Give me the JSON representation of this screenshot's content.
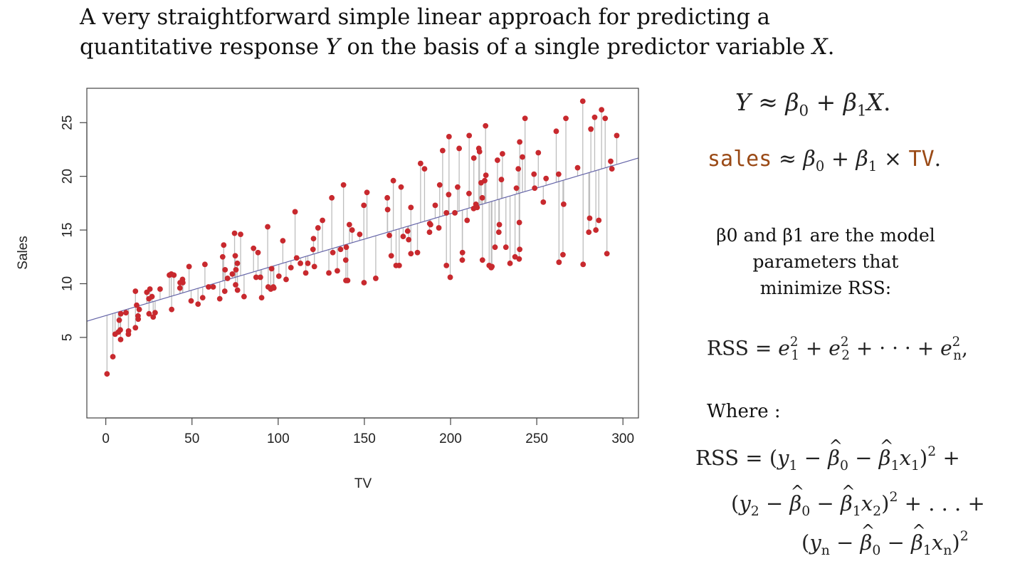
{
  "title": {
    "line1": "A very straightforward simple linear approach for predicting a",
    "line2_pre": "quantitative response ",
    "line2_y": "Y",
    "line2_mid": " on the basis of a single predictor variable ",
    "line2_x": "X",
    "line2_end": "."
  },
  "equations": {
    "eq1": {
      "lhs": "Y",
      "approx": "≈",
      "beta": "β",
      "sub0": "0",
      "plus": "+",
      "sub1": "1",
      "x": "X",
      "end": "."
    },
    "eq2": {
      "sales": "sales",
      "approx": "≈",
      "beta": "β",
      "sub0": "0",
      "plus": "+",
      "sub1": "1",
      "times": "×",
      "tv": "TV",
      "end": "."
    },
    "rss": {
      "lhs": "RSS",
      "eq": "=",
      "e": "e",
      "sub1": "1",
      "sub2": "2",
      "subn": "n",
      "sq": "2",
      "plus": "+",
      "dots": "· · ·",
      "end": ","
    },
    "rss_full": {
      "lhs": "RSS",
      "eq": "=",
      "y": "y",
      "x": "x",
      "beta": "β",
      "minus": "−",
      "plus": "+",
      "ellipsis": ". . .",
      "sub0": "0",
      "sub1": "1",
      "sub2": "2",
      "subn": "n",
      "sq": "2",
      "open": "(",
      "close": ")"
    }
  },
  "description": {
    "line1": "β0 and β1 are the model",
    "line2": "parameters that",
    "line3": "minimize RSS:"
  },
  "where_label": "Where :",
  "chart_data": {
    "type": "scatter",
    "xlabel": "TV",
    "ylabel": "Sales",
    "xlim": [
      -11,
      309
    ],
    "ylim": [
      -2.5,
      28.2
    ],
    "x_ticks": [
      0,
      50,
      100,
      150,
      200,
      250,
      300
    ],
    "y_ticks": [
      5,
      10,
      15,
      20,
      25
    ],
    "grid": false,
    "regression_line": {
      "intercept": 7.03,
      "slope": 0.0475
    },
    "colors": {
      "points": "#c8292e",
      "fit_line": "#6565a8",
      "residuals": "#bdbdbd"
    },
    "points": [
      [
        0.7,
        1.6
      ],
      [
        4.1,
        3.2
      ],
      [
        5.4,
        5.3
      ],
      [
        7.3,
        5.5
      ],
      [
        7.8,
        6.6
      ],
      [
        8.4,
        5.7
      ],
      [
        8.6,
        4.8
      ],
      [
        8.7,
        7.2
      ],
      [
        11.7,
        7.3
      ],
      [
        13.1,
        5.3
      ],
      [
        13.2,
        5.6
      ],
      [
        17.2,
        5.9
      ],
      [
        17.2,
        9.3
      ],
      [
        17.9,
        8.0
      ],
      [
        18.7,
        7.0
      ],
      [
        18.8,
        6.7
      ],
      [
        19.4,
        7.6
      ],
      [
        23.8,
        9.2
      ],
      [
        25.0,
        8.6
      ],
      [
        25.1,
        7.2
      ],
      [
        25.6,
        9.5
      ],
      [
        26.8,
        8.8
      ],
      [
        27.5,
        6.9
      ],
      [
        28.6,
        7.3
      ],
      [
        31.5,
        9.5
      ],
      [
        36.9,
        10.8
      ],
      [
        38.0,
        10.9
      ],
      [
        38.2,
        7.6
      ],
      [
        39.5,
        10.8
      ],
      [
        43.0,
        9.6
      ],
      [
        43.1,
        10.1
      ],
      [
        44.5,
        10.4
      ],
      [
        44.7,
        10.1
      ],
      [
        48.3,
        11.6
      ],
      [
        49.5,
        8.4
      ],
      [
        53.5,
        8.1
      ],
      [
        56.2,
        8.7
      ],
      [
        57.5,
        11.8
      ],
      [
        59.6,
        9.7
      ],
      [
        62.3,
        9.7
      ],
      [
        66.1,
        8.6
      ],
      [
        67.8,
        12.5
      ],
      [
        68.4,
        13.6
      ],
      [
        69.0,
        9.3
      ],
      [
        69.2,
        11.3
      ],
      [
        70.6,
        10.5
      ],
      [
        73.4,
        10.9
      ],
      [
        74.7,
        14.7
      ],
      [
        75.1,
        12.6
      ],
      [
        75.3,
        9.9
      ],
      [
        75.5,
        11.3
      ],
      [
        76.3,
        11.9
      ],
      [
        76.4,
        9.4
      ],
      [
        78.2,
        14.6
      ],
      [
        80.2,
        8.8
      ],
      [
        85.7,
        13.3
      ],
      [
        87.2,
        10.6
      ],
      [
        88.3,
        12.9
      ],
      [
        89.7,
        10.6
      ],
      [
        90.4,
        8.7
      ],
      [
        93.9,
        15.3
      ],
      [
        94.2,
        9.7
      ],
      [
        95.7,
        9.5
      ],
      [
        96.2,
        11.4
      ],
      [
        97.2,
        9.7
      ],
      [
        97.5,
        9.6
      ],
      [
        100.4,
        10.7
      ],
      [
        102.7,
        14.0
      ],
      [
        104.6,
        10.4
      ],
      [
        107.4,
        11.5
      ],
      [
        109.8,
        16.7
      ],
      [
        110.7,
        12.4
      ],
      [
        112.9,
        11.9
      ],
      [
        116.0,
        11.0
      ],
      [
        117.2,
        11.9
      ],
      [
        120.2,
        13.2
      ],
      [
        120.5,
        14.2
      ],
      [
        121.0,
        11.6
      ],
      [
        123.1,
        15.2
      ],
      [
        125.7,
        15.9
      ],
      [
        129.4,
        11.0
      ],
      [
        131.1,
        18.0
      ],
      [
        131.7,
        12.9
      ],
      [
        134.3,
        11.2
      ],
      [
        136.2,
        13.2
      ],
      [
        137.9,
        19.2
      ],
      [
        139.2,
        12.2
      ],
      [
        139.3,
        10.3
      ],
      [
        139.5,
        13.4
      ],
      [
        140.3,
        10.3
      ],
      [
        141.3,
        15.5
      ],
      [
        142.9,
        15.0
      ],
      [
        147.3,
        14.6
      ],
      [
        149.7,
        17.3
      ],
      [
        149.8,
        10.1
      ],
      [
        151.5,
        18.5
      ],
      [
        156.6,
        10.5
      ],
      [
        163.3,
        18.0
      ],
      [
        163.5,
        16.9
      ],
      [
        164.5,
        14.5
      ],
      [
        165.6,
        12.6
      ],
      [
        166.8,
        19.6
      ],
      [
        168.4,
        11.7
      ],
      [
        170.2,
        11.7
      ],
      [
        171.3,
        19.0
      ],
      [
        172.5,
        14.4
      ],
      [
        175.1,
        14.9
      ],
      [
        175.7,
        14.1
      ],
      [
        177.0,
        12.8
      ],
      [
        177.0,
        17.1
      ],
      [
        180.8,
        12.9
      ],
      [
        182.6,
        21.2
      ],
      [
        184.9,
        20.7
      ],
      [
        187.8,
        14.8
      ],
      [
        187.9,
        15.6
      ],
      [
        188.4,
        15.5
      ],
      [
        191.1,
        17.3
      ],
      [
        193.2,
        15.2
      ],
      [
        193.7,
        19.2
      ],
      [
        195.4,
        22.4
      ],
      [
        197.6,
        16.6
      ],
      [
        197.6,
        11.7
      ],
      [
        198.9,
        18.3
      ],
      [
        199.1,
        23.7
      ],
      [
        199.8,
        10.6
      ],
      [
        202.5,
        16.6
      ],
      [
        204.1,
        19.0
      ],
      [
        205.0,
        22.6
      ],
      [
        206.8,
        12.2
      ],
      [
        206.9,
        12.9
      ],
      [
        209.6,
        15.9
      ],
      [
        210.7,
        18.4
      ],
      [
        210.8,
        23.8
      ],
      [
        213.4,
        17.0
      ],
      [
        213.5,
        21.7
      ],
      [
        214.7,
        17.4
      ],
      [
        215.4,
        17.1
      ],
      [
        216.4,
        22.6
      ],
      [
        216.8,
        22.3
      ],
      [
        217.7,
        19.4
      ],
      [
        218.4,
        18.0
      ],
      [
        218.5,
        12.2
      ],
      [
        219.8,
        19.6
      ],
      [
        220.3,
        24.7
      ],
      [
        220.5,
        20.1
      ],
      [
        222.4,
        11.7
      ],
      [
        223.6,
        11.5
      ],
      [
        224.0,
        11.6
      ],
      [
        225.8,
        13.4
      ],
      [
        227.2,
        21.5
      ],
      [
        228.0,
        14.8
      ],
      [
        228.3,
        15.5
      ],
      [
        229.5,
        19.7
      ],
      [
        230.1,
        22.1
      ],
      [
        232.1,
        13.4
      ],
      [
        234.5,
        11.9
      ],
      [
        237.4,
        12.5
      ],
      [
        238.2,
        18.9
      ],
      [
        239.3,
        20.7
      ],
      [
        239.8,
        12.3
      ],
      [
        239.9,
        15.7
      ],
      [
        240.1,
        23.2
      ],
      [
        240.1,
        13.2
      ],
      [
        241.7,
        21.8
      ],
      [
        243.2,
        25.4
      ],
      [
        248.4,
        20.2
      ],
      [
        248.8,
        18.9
      ],
      [
        250.9,
        22.2
      ],
      [
        253.8,
        17.6
      ],
      [
        255.4,
        19.8
      ],
      [
        261.3,
        24.2
      ],
      [
        262.7,
        20.2
      ],
      [
        262.9,
        12.0
      ],
      [
        265.2,
        12.7
      ],
      [
        265.6,
        17.4
      ],
      [
        266.9,
        25.4
      ],
      [
        273.7,
        20.8
      ],
      [
        276.7,
        27.0
      ],
      [
        276.9,
        11.8
      ],
      [
        280.2,
        14.8
      ],
      [
        280.7,
        16.1
      ],
      [
        281.4,
        24.4
      ],
      [
        283.6,
        25.5
      ],
      [
        284.3,
        15.0
      ],
      [
        286.0,
        15.9
      ],
      [
        287.6,
        26.2
      ],
      [
        289.7,
        25.4
      ],
      [
        290.7,
        12.8
      ],
      [
        292.9,
        21.4
      ],
      [
        293.6,
        20.7
      ],
      [
        296.4,
        23.8
      ]
    ]
  }
}
